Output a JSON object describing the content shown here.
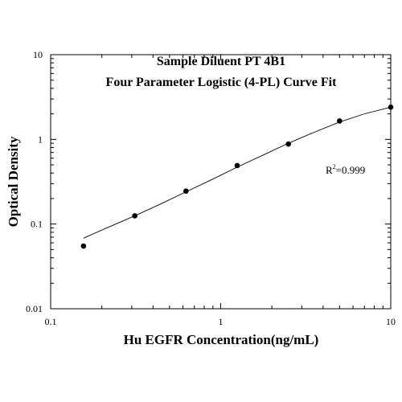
{
  "chart_data": {
    "type": "scatter",
    "title": "Sample Diluent PT 4B1",
    "subtitle": "Four Parameter Logistic (4-PL) Curve Fit",
    "xlabel": "Hu EGFR Concentration(ng/mL)",
    "ylabel": "Optical Density",
    "x_scale": "log",
    "y_scale": "log",
    "xlim": [
      0.1,
      10
    ],
    "ylim": [
      0.01,
      10
    ],
    "x_ticks": [
      "0.1",
      "1",
      "10"
    ],
    "y_ticks": [
      "0.01",
      "0.1",
      "1",
      "10"
    ],
    "grid": false,
    "points": {
      "x": [
        0.156,
        0.3125,
        0.625,
        1.25,
        2.5,
        5,
        10
      ],
      "y": [
        0.055,
        0.125,
        0.245,
        0.49,
        0.88,
        1.65,
        2.4
      ]
    },
    "fit_curve": {
      "model": "4-PL",
      "x": [
        0.156,
        0.2,
        0.3125,
        0.45,
        0.625,
        0.9,
        1.25,
        1.8,
        2.5,
        3.5,
        5,
        7,
        10
      ],
      "y": [
        0.068,
        0.085,
        0.125,
        0.175,
        0.24,
        0.34,
        0.47,
        0.66,
        0.9,
        1.2,
        1.6,
        2.0,
        2.4
      ]
    },
    "annotation": {
      "prefix": "R",
      "superscript": "2",
      "suffix": "=0.999"
    }
  }
}
